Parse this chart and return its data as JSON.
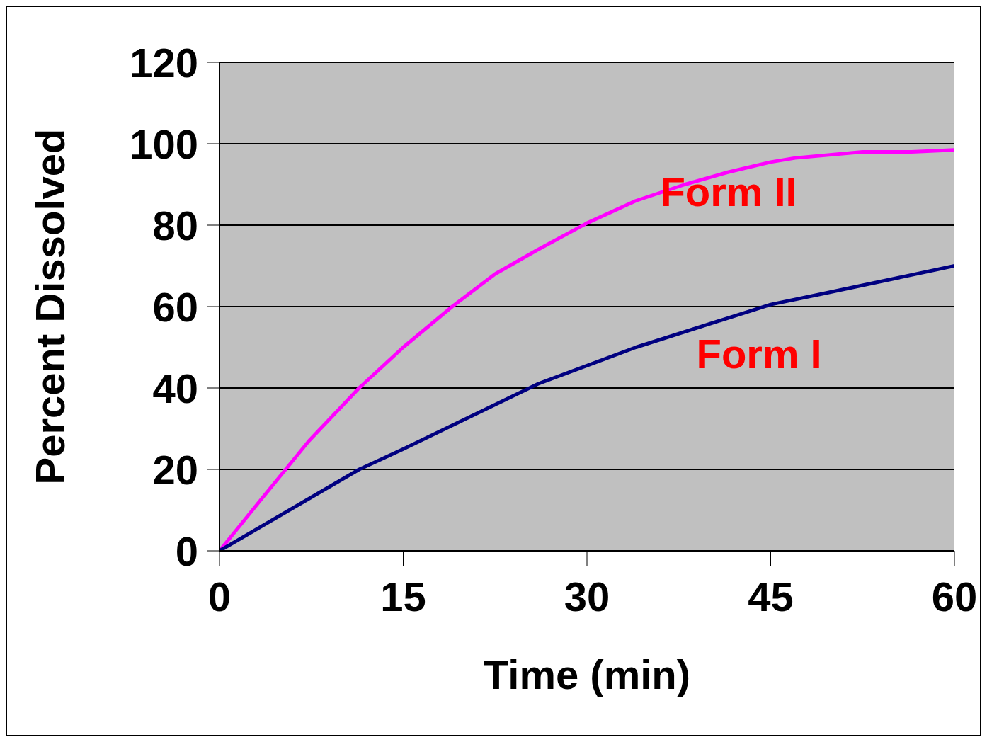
{
  "chart_data": {
    "type": "line",
    "xlabel": "Time (min)",
    "ylabel": "Percent Dissolved",
    "xlim": [
      0,
      60
    ],
    "xticks": [
      0,
      15,
      30,
      45,
      60
    ],
    "ylim": [
      0,
      120
    ],
    "yticks": [
      0,
      20,
      40,
      60,
      80,
      100,
      120
    ],
    "grid": "y",
    "legend": false,
    "marker": "none",
    "line_style": "solid",
    "series": [
      {
        "name": "Form II",
        "color": "#ff00ff",
        "x": [
          0,
          3.5,
          7.3,
          11.4,
          15,
          19,
          22.5,
          26,
          30,
          34,
          38,
          41.5,
          45,
          47,
          52.5,
          56.5,
          60
        ],
        "values": [
          0,
          13,
          27,
          40,
          50,
          60,
          68,
          74,
          80.5,
          86,
          90,
          93,
          95.5,
          96.5,
          98,
          98,
          98.5
        ]
      },
      {
        "name": "Form I",
        "color": "#000080",
        "x": [
          0,
          11.4,
          15,
          26,
          34,
          45,
          49,
          60
        ],
        "values": [
          0,
          20,
          25,
          41,
          50,
          60.5,
          63,
          70
        ]
      }
    ]
  }
}
